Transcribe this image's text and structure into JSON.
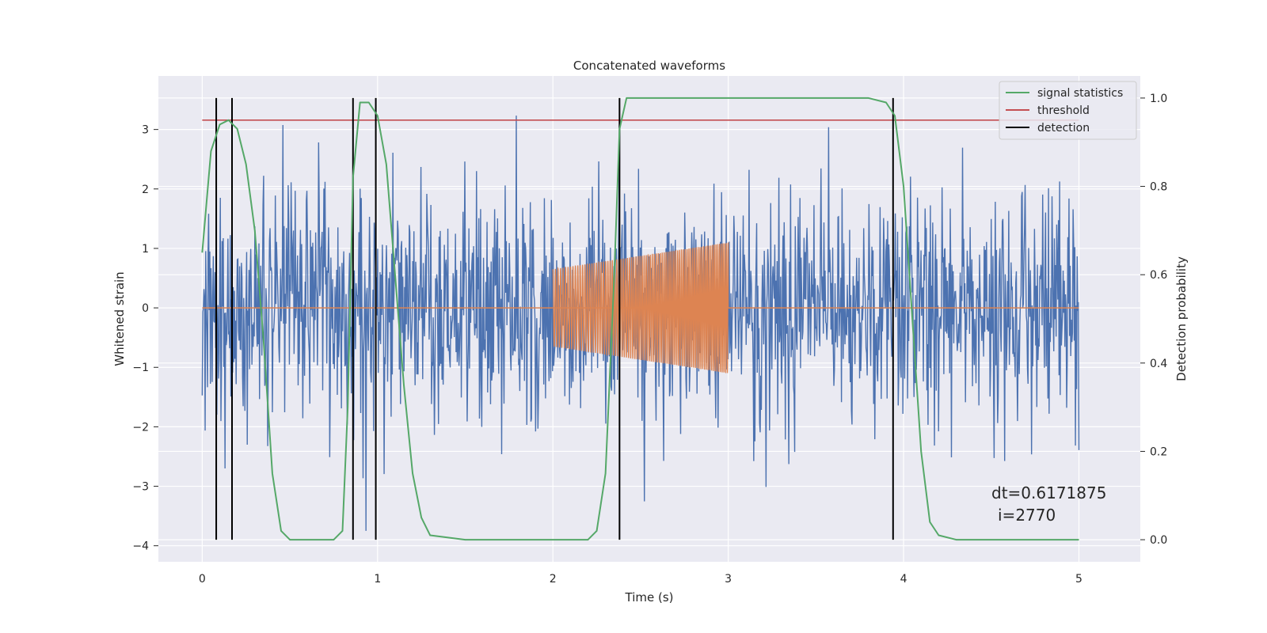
{
  "chart_data": {
    "type": "line",
    "title": "Concatenated waveforms",
    "xlabel": "Time (s)",
    "ylabel": "Whitened strain",
    "y2label": "Detection probability",
    "xlim": [
      -0.25,
      5.35
    ],
    "ylim": [
      -4.27,
      3.9
    ],
    "y2lim": [
      -0.05,
      1.05
    ],
    "xticks": [
      0,
      1,
      2,
      3,
      4,
      5
    ],
    "yticks": [
      -4,
      -3,
      -2,
      -1,
      0,
      1,
      2,
      3
    ],
    "y2ticks": [
      0.0,
      0.2,
      0.4,
      0.6,
      0.8,
      1.0
    ],
    "grid": true,
    "legend_position": "top-right",
    "colors": {
      "strain": "#4c72b0",
      "template": "#dd8452",
      "statistic": "#55a868",
      "threshold": "#c44e52",
      "detection": "#000000",
      "background": "#eaeaf2"
    },
    "strain": {
      "x_range": [
        0,
        5
      ],
      "sample_count": 1500,
      "envelope_max": 3.55,
      "envelope_min": -3.75
    },
    "template": {
      "t_start": 2.0,
      "t_end": 3.0,
      "amp_start": 0.65,
      "amp_end": 1.1,
      "cycles": 68
    },
    "signal_statistics": {
      "x": [
        0,
        0.05,
        0.1,
        0.15,
        0.2,
        0.25,
        0.3,
        0.35,
        0.4,
        0.45,
        0.5,
        0.6,
        0.7,
        0.75,
        0.8,
        0.83,
        0.86,
        0.9,
        0.95,
        1.0,
        1.05,
        1.1,
        1.15,
        1.2,
        1.25,
        1.3,
        1.5,
        2.0,
        2.2,
        2.25,
        2.3,
        2.35,
        2.38,
        2.42,
        2.5,
        3.0,
        3.8,
        3.9,
        3.95,
        4.0,
        4.05,
        4.1,
        4.15,
        4.2,
        4.3,
        4.5,
        5.0
      ],
      "y": [
        0.65,
        0.88,
        0.94,
        0.95,
        0.93,
        0.85,
        0.7,
        0.45,
        0.15,
        0.02,
        0.0,
        0.0,
        0.0,
        0.0,
        0.02,
        0.3,
        0.82,
        0.99,
        0.99,
        0.96,
        0.85,
        0.6,
        0.35,
        0.15,
        0.05,
        0.01,
        0.0,
        0.0,
        0.0,
        0.02,
        0.15,
        0.6,
        0.93,
        1.0,
        1.0,
        1.0,
        1.0,
        0.99,
        0.96,
        0.8,
        0.5,
        0.2,
        0.04,
        0.01,
        0.0,
        0.0,
        0.0
      ]
    },
    "threshold": {
      "value": 0.95,
      "x_range": [
        0,
        5
      ]
    },
    "detections": [
      0.08,
      0.17,
      0.86,
      0.99,
      2.38,
      3.94
    ],
    "legend": [
      {
        "label": "signal statistics",
        "color": "#55a868"
      },
      {
        "label": "threshold",
        "color": "#c44e52"
      },
      {
        "label": "detection",
        "color": "#000000"
      }
    ],
    "annotation": {
      "line1": "dt=0.6171875",
      "line2": "i=2770"
    }
  }
}
